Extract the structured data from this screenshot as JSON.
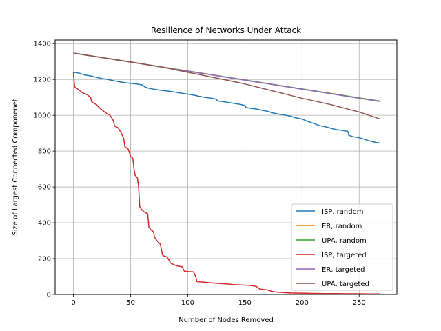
{
  "chart_data": {
    "type": "line",
    "title": "Resilience of Networks Under Attack",
    "xlabel": "Number of Nodes Removed",
    "ylabel": "Size of Largest Connected Componenet",
    "xlim": [
      -16,
      283
    ],
    "ylim": [
      0,
      1420
    ],
    "xticks": [
      0,
      50,
      100,
      150,
      200,
      250
    ],
    "yticks": [
      0,
      200,
      400,
      600,
      800,
      1000,
      1200,
      1400
    ],
    "grid": true,
    "legend_position": "lower right",
    "series": [
      {
        "name": "ISP, random",
        "color": "#1f77b4",
        "x": [
          0,
          5,
          10,
          15,
          20,
          25,
          30,
          35,
          40,
          45,
          50,
          55,
          60,
          62,
          65,
          70,
          75,
          80,
          85,
          90,
          95,
          100,
          105,
          110,
          115,
          120,
          125,
          126,
          130,
          135,
          140,
          145,
          150,
          151,
          155,
          160,
          165,
          170,
          175,
          180,
          185,
          190,
          195,
          200,
          205,
          210,
          215,
          220,
          225,
          230,
          235,
          240,
          241,
          245,
          250,
          255,
          260,
          265,
          268
        ],
        "y": [
          1240,
          1235,
          1225,
          1220,
          1212,
          1205,
          1200,
          1193,
          1187,
          1182,
          1178,
          1175,
          1170,
          1160,
          1152,
          1146,
          1141,
          1137,
          1133,
          1128,
          1123,
          1118,
          1113,
          1106,
          1100,
          1096,
          1090,
          1080,
          1077,
          1072,
          1067,
          1062,
          1055,
          1043,
          1039,
          1035,
          1028,
          1022,
          1012,
          1006,
          1001,
          995,
          985,
          979,
          966,
          955,
          943,
          937,
          928,
          920,
          916,
          910,
          888,
          880,
          875,
          865,
          855,
          848,
          845
        ]
      },
      {
        "name": "ER, random",
        "color": "#ff7f0e",
        "x": [
          0,
          268
        ],
        "y": [
          1347,
          1079
        ]
      },
      {
        "name": "UPA, random",
        "color": "#2ca02c",
        "x": [
          0,
          268
        ],
        "y": [
          1347,
          1079
        ]
      },
      {
        "name": "ISP, targeted",
        "color": "#d62728",
        "x": [
          0,
          1,
          3,
          5,
          8,
          12,
          15,
          16,
          20,
          23,
          25,
          28,
          32,
          35,
          36,
          39,
          42,
          44,
          45,
          48,
          50,
          52,
          53,
          54,
          56,
          57,
          58,
          60,
          62,
          65,
          66,
          68,
          70,
          71,
          73,
          76,
          78,
          79,
          82,
          85,
          86,
          90,
          95,
          97,
          100,
          105,
          107,
          108,
          110,
          115,
          120,
          125,
          130,
          135,
          140,
          150,
          155,
          160,
          163,
          170,
          175,
          180,
          185,
          190,
          200,
          210,
          220,
          230,
          240,
          250,
          260,
          268
        ],
        "y": [
          1240,
          1160,
          1150,
          1140,
          1125,
          1115,
          1100,
          1075,
          1060,
          1040,
          1030,
          1015,
          1000,
          970,
          940,
          930,
          900,
          870,
          825,
          810,
          770,
          760,
          700,
          665,
          650,
          600,
          490,
          470,
          460,
          450,
          375,
          360,
          350,
          320,
          300,
          280,
          220,
          215,
          210,
          175,
          172,
          160,
          155,
          130,
          128,
          126,
          100,
          72,
          70,
          68,
          65,
          62,
          60,
          58,
          55,
          52,
          50,
          45,
          30,
          25,
          15,
          12,
          10,
          8,
          7,
          6,
          5,
          5,
          4,
          4,
          3,
          3
        ]
      },
      {
        "name": "ER, targeted",
        "color": "#9467bd",
        "x": [
          0,
          268
        ],
        "y": [
          1347,
          1077
        ]
      },
      {
        "name": "UPA, targeted",
        "color": "#8c564b",
        "x": [
          0,
          50,
          75,
          100,
          125,
          150,
          175,
          200,
          225,
          250,
          268
        ],
        "y": [
          1347,
          1298,
          1272,
          1240,
          1208,
          1175,
          1135,
          1095,
          1060,
          1018,
          980
        ]
      }
    ]
  }
}
